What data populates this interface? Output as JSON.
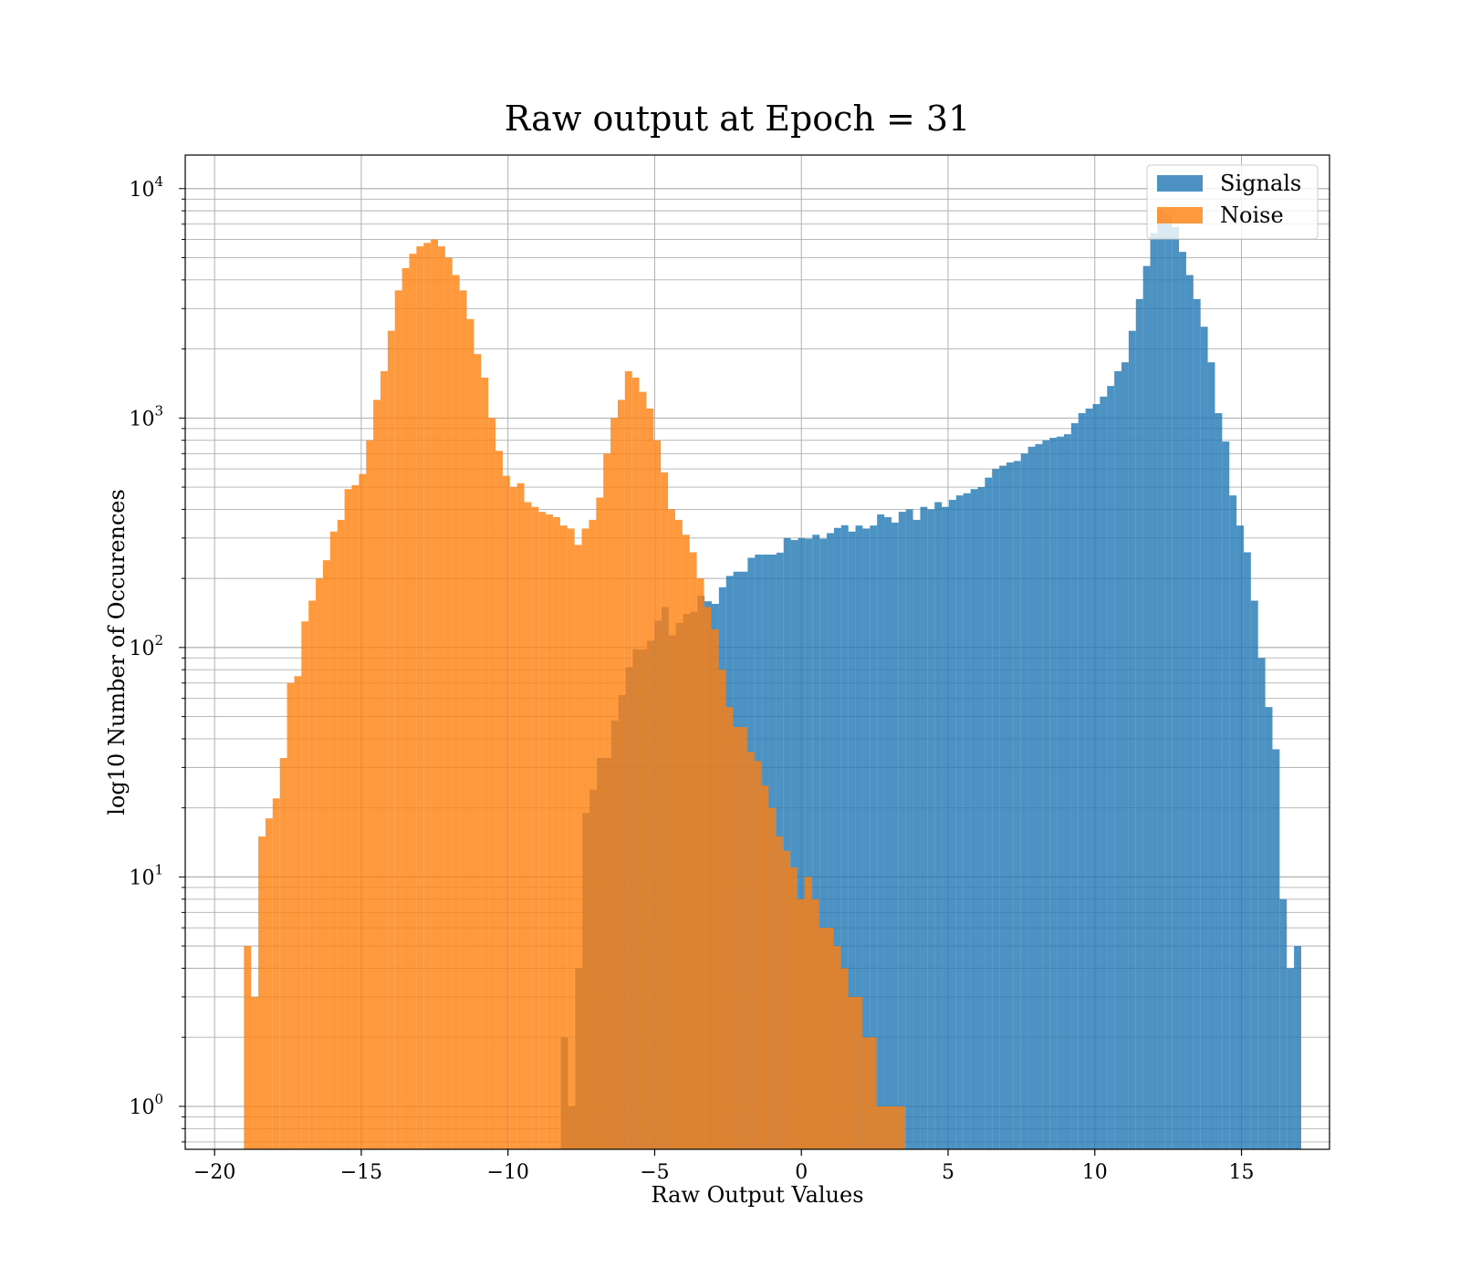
{
  "chart_data": {
    "type": "bar",
    "title": "Raw output at Epoch = 31",
    "xlabel": "Raw Output Values",
    "ylabel": "log10 Number of Occurences",
    "xlim": [
      -21,
      18
    ],
    "ylim": [
      0.65,
      14000
    ],
    "yscale": "log",
    "grid": true,
    "legend_position": "top-right",
    "x_ticks": [
      -20,
      -15,
      -10,
      -5,
      0,
      5,
      10,
      15
    ],
    "x_tick_labels": [
      "−20",
      "−15",
      "−10",
      "−5",
      "0",
      "5",
      "10",
      "15"
    ],
    "y_ticks": [
      {
        "value": 1,
        "base": "10",
        "exp": "0"
      },
      {
        "value": 10,
        "base": "10",
        "exp": "1"
      },
      {
        "value": 100,
        "base": "10",
        "exp": "2"
      },
      {
        "value": 1000,
        "base": "10",
        "exp": "3"
      },
      {
        "value": 10000,
        "base": "10",
        "exp": "4"
      }
    ],
    "series": [
      {
        "name": "Signals",
        "color": "#1f77b4",
        "opacity": 0.8,
        "bin_start": -8.2,
        "bin_width": 0.245,
        "values": [
          2,
          1,
          4,
          19,
          24,
          33,
          33,
          48,
          62,
          82,
          98,
          98,
          107,
          131,
          150,
          113,
          128,
          140,
          143,
          168,
          159,
          155,
          183,
          205,
          214,
          214,
          246,
          254,
          254,
          254,
          259,
          300,
          294,
          300,
          298,
          310,
          298,
          315,
          332,
          341,
          320,
          340,
          330,
          340,
          380,
          370,
          350,
          390,
          400,
          360,
          410,
          400,
          430,
          410,
          440,
          460,
          470,
          490,
          500,
          550,
          600,
          620,
          640,
          650,
          700,
          750,
          770,
          800,
          820,
          830,
          850,
          950,
          1050,
          1100,
          1150,
          1240,
          1380,
          1600,
          1750,
          2400,
          3300,
          4600,
          6400,
          8000,
          7700,
          6800,
          5300,
          4200,
          3300,
          2500,
          1750,
          1050,
          790,
          460,
          340,
          260,
          160,
          90,
          55,
          36,
          8,
          4,
          5
        ]
      },
      {
        "name": "Noise",
        "color": "#ff7f0e",
        "opacity": 0.8,
        "bin_start": -19.0,
        "bin_width": 0.245,
        "values": [
          5,
          3,
          15,
          18,
          22,
          33,
          70,
          75,
          130,
          160,
          200,
          240,
          320,
          360,
          490,
          510,
          570,
          800,
          1200,
          1600,
          2400,
          3600,
          4500,
          5200,
          5600,
          5800,
          6000,
          5600,
          5000,
          4200,
          3600,
          2700,
          1900,
          1500,
          1000,
          720,
          560,
          500,
          520,
          430,
          410,
          390,
          380,
          370,
          340,
          330,
          280,
          330,
          360,
          450,
          700,
          1000,
          1200,
          1600,
          1500,
          1300,
          1100,
          800,
          580,
          400,
          360,
          310,
          260,
          200,
          150,
          120,
          80,
          55,
          45,
          45,
          35,
          32,
          25,
          20,
          15,
          13,
          11,
          8,
          10,
          8,
          6,
          6,
          5,
          4,
          3,
          3,
          2,
          2,
          1,
          1,
          1,
          1
        ]
      }
    ]
  }
}
